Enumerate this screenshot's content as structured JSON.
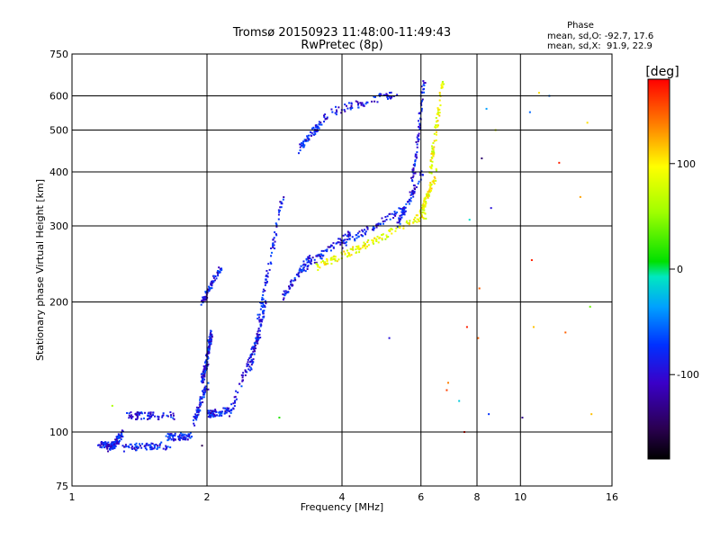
{
  "chart_data": {
    "type": "scatter",
    "title": "Tromsø 20150923 11:48:00-11:49:43",
    "subtitle": "RwPretec (8p)",
    "xlabel": "Frequency [MHz]",
    "ylabel": "Stationary phase Virtual Height [km]",
    "xscale": "log",
    "yscale": "log",
    "xlim": [
      1,
      16
    ],
    "ylim": [
      75,
      750
    ],
    "xticks": [
      1,
      2,
      4,
      6,
      8,
      10,
      16
    ],
    "xtick_labels": [
      "1",
      "2",
      "4",
      "6",
      "8",
      "10",
      "16"
    ],
    "yticks": [
      75,
      100,
      200,
      300,
      400,
      500,
      600,
      750
    ],
    "ytick_labels": [
      "75",
      "100",
      "200",
      "300",
      "400",
      "500",
      "600",
      "750"
    ],
    "grid": true,
    "phase_stats": {
      "title": "Phase",
      "line_o": "mean, sd,O: -92.7, 17.6",
      "line_x": "mean, sd,X:  91.9, 22.9"
    },
    "colorbar": {
      "label": "[deg]",
      "range": [
        -180,
        180
      ],
      "ticks": [
        100,
        0,
        -100
      ],
      "tick_labels": [
        "100",
        "0",
        "-100"
      ],
      "colormap": "rainbow"
    },
    "series": [
      {
        "mode": "O",
        "phase_mean": -92.7,
        "traces": [
          {
            "f": [
              1.15,
              1.25
            ],
            "h": [
              93,
              93
            ]
          },
          {
            "f": [
              1.2,
              1.3
            ],
            "h": [
              90,
              99
            ]
          },
          {
            "f": [
              1.3,
              1.65
            ],
            "h": [
              92,
              93
            ]
          },
          {
            "f": [
              1.33,
              1.7
            ],
            "h": [
              109,
              109
            ]
          },
          {
            "f": [
              1.63,
              1.85
            ],
            "h": [
              97,
              98
            ]
          },
          {
            "f": [
              1.86,
              2.0
            ],
            "h": [
              104,
              128
            ]
          },
          {
            "f": [
              1.95,
              2.0
            ],
            "h": [
              132,
              146
            ]
          },
          {
            "f": [
              2.0,
              2.05
            ],
            "h": [
              150,
              170
            ]
          },
          {
            "f": [
              2.0,
              2.25
            ],
            "h": [
              110,
              112
            ]
          },
          {
            "f": [
              1.95,
              2.15
            ],
            "h": [
              200,
              240
            ]
          },
          {
            "f": [
              2.25,
              2.65
            ],
            "h": [
              110,
              175
            ]
          },
          {
            "f": [
              2.5,
              2.7
            ],
            "h": [
              140,
              200
            ]
          },
          {
            "f": [
              2.6,
              2.95
            ],
            "h": [
              180,
              350
            ]
          },
          {
            "f": [
              2.95,
              3.4
            ],
            "h": [
              205,
              255
            ]
          },
          {
            "f": [
              3.3,
              4.2
            ],
            "h": [
              240,
              290
            ]
          },
          {
            "f": [
              4.0,
              5.5
            ],
            "h": [
              270,
              330
            ]
          },
          {
            "f": [
              5.3,
              6.05
            ],
            "h": [
              300,
              400
            ]
          },
          {
            "f": [
              5.75,
              6.1
            ],
            "h": [
              380,
              650
            ]
          },
          {
            "f": [
              3.2,
              3.7
            ],
            "h": [
              450,
              540
            ]
          },
          {
            "f": [
              3.8,
              5.3
            ],
            "h": [
              550,
              610
            ]
          }
        ]
      },
      {
        "mode": "X",
        "phase_mean": 91.9,
        "traces": [
          {
            "f": [
              3.5,
              4.5
            ],
            "h": [
              240,
              270
            ]
          },
          {
            "f": [
              4.5,
              6.2
            ],
            "h": [
              270,
              320
            ]
          },
          {
            "f": [
              6.0,
              6.5
            ],
            "h": [
              320,
              400
            ]
          },
          {
            "f": [
              6.3,
              6.7
            ],
            "h": [
              400,
              650
            ]
          }
        ]
      }
    ],
    "scattered_points": [
      {
        "f": 1.23,
        "h": 115,
        "phase": 60
      },
      {
        "f": 1.95,
        "h": 93,
        "phase": -150
      },
      {
        "f": 2.9,
        "h": 108,
        "phase": 20
      },
      {
        "f": 5.1,
        "h": 165,
        "phase": -100
      },
      {
        "f": 6.9,
        "h": 130,
        "phase": 140
      },
      {
        "f": 6.85,
        "h": 125,
        "phase": 160
      },
      {
        "f": 7.5,
        "h": 100,
        "phase": 175
      },
      {
        "f": 7.3,
        "h": 118,
        "phase": -20
      },
      {
        "f": 7.6,
        "h": 175,
        "phase": 170
      },
      {
        "f": 7.7,
        "h": 310,
        "phase": -10
      },
      {
        "f": 8.05,
        "h": 165,
        "phase": 150
      },
      {
        "f": 8.1,
        "h": 215,
        "phase": 150
      },
      {
        "f": 8.2,
        "h": 430,
        "phase": -140
      },
      {
        "f": 8.4,
        "h": 560,
        "phase": -40
      },
      {
        "f": 8.5,
        "h": 110,
        "phase": -80
      },
      {
        "f": 8.6,
        "h": 330,
        "phase": -100
      },
      {
        "f": 8.8,
        "h": 500,
        "phase": 80
      },
      {
        "f": 10.1,
        "h": 108,
        "phase": -130
      },
      {
        "f": 10.5,
        "h": 550,
        "phase": -60
      },
      {
        "f": 10.6,
        "h": 250,
        "phase": 170
      },
      {
        "f": 10.7,
        "h": 175,
        "phase": 120
      },
      {
        "f": 11.0,
        "h": 610,
        "phase": 110
      },
      {
        "f": 11.6,
        "h": 600,
        "phase": -60
      },
      {
        "f": 12.2,
        "h": 420,
        "phase": 170
      },
      {
        "f": 12.6,
        "h": 170,
        "phase": 150
      },
      {
        "f": 13.6,
        "h": 350,
        "phase": 130
      },
      {
        "f": 14.1,
        "h": 520,
        "phase": 110
      },
      {
        "f": 14.3,
        "h": 195,
        "phase": 40
      },
      {
        "f": 14.4,
        "h": 110,
        "phase": 120
      }
    ]
  }
}
